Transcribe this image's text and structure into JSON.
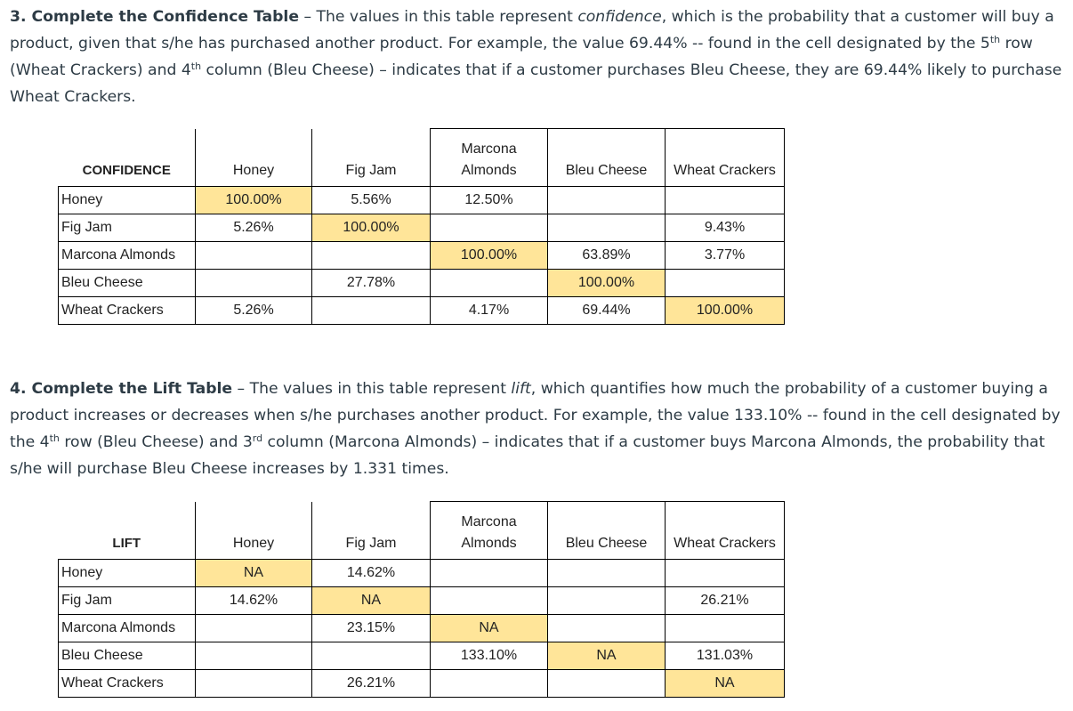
{
  "section3": {
    "number_title": "3. Complete the Confidence Table",
    "text_a": " – The values in this table represent ",
    "italic": "confidence",
    "text_b": ", which is the probability that a customer will buy a product, given that s/he has purchased another product. For example, the value 69.44% -- found in the cell designated by the 5",
    "sup1": "th",
    "text_c": " row (Wheat Crackers) and 4",
    "sup2": "th",
    "text_d": " column (Bleu Cheese) – indicates that if a customer purchases Bleu Cheese, they are 69.44% likely to purchase Wheat Crackers."
  },
  "confidence_table": {
    "corner": "CONFIDENCE",
    "headers": [
      "Honey",
      "Fig Jam",
      "Marcona Almonds",
      "Bleu Cheese",
      "Wheat Crackers"
    ],
    "rows": [
      {
        "label": "Honey",
        "cells": [
          "100.00%",
          "5.56%",
          "12.50%",
          "",
          ""
        ]
      },
      {
        "label": "Fig Jam",
        "cells": [
          "5.26%",
          "100.00%",
          "",
          "",
          "9.43%"
        ]
      },
      {
        "label": "Marcona Almonds",
        "cells": [
          "",
          "",
          "100.00%",
          "63.89%",
          "3.77%"
        ]
      },
      {
        "label": "Bleu Cheese",
        "cells": [
          "",
          "27.78%",
          "",
          "100.00%",
          ""
        ]
      },
      {
        "label": "Wheat Crackers",
        "cells": [
          "5.26%",
          "",
          "4.17%",
          "69.44%",
          "100.00%"
        ]
      }
    ]
  },
  "section4": {
    "number_title": "4. Complete the Lift Table",
    "text_a": " – The values in this table represent ",
    "italic": "lift",
    "text_b": ", which quantifies how much the probability of a customer buying a product increases or decreases when s/he purchases another product. For example, the value 133.10% -- found in the cell designated by the 4",
    "sup1": "th",
    "text_c": " row (Bleu Cheese) and 3",
    "sup2": "rd",
    "text_d": " column (Marcona Almonds) – indicates that if a customer buys Marcona Almonds, the probability that s/he will purchase Bleu Cheese increases by 1.331 times."
  },
  "lift_table": {
    "corner": "LIFT",
    "headers": [
      "Honey",
      "Fig Jam",
      "Marcona Almonds",
      "Bleu Cheese",
      "Wheat Crackers"
    ],
    "rows": [
      {
        "label": "Honey",
        "cells": [
          "NA",
          "14.62%",
          "",
          "",
          ""
        ]
      },
      {
        "label": "Fig Jam",
        "cells": [
          "14.62%",
          "NA",
          "",
          "",
          "26.21%"
        ]
      },
      {
        "label": "Marcona Almonds",
        "cells": [
          "",
          "23.15%",
          "NA",
          "",
          ""
        ]
      },
      {
        "label": "Bleu Cheese",
        "cells": [
          "",
          "",
          "133.10%",
          "NA",
          "131.03%"
        ]
      },
      {
        "label": "Wheat Crackers",
        "cells": [
          "",
          "26.21%",
          "",
          "",
          "NA"
        ]
      }
    ]
  },
  "colors": {
    "highlight": "#ffe599",
    "text": "#2d3b45"
  }
}
